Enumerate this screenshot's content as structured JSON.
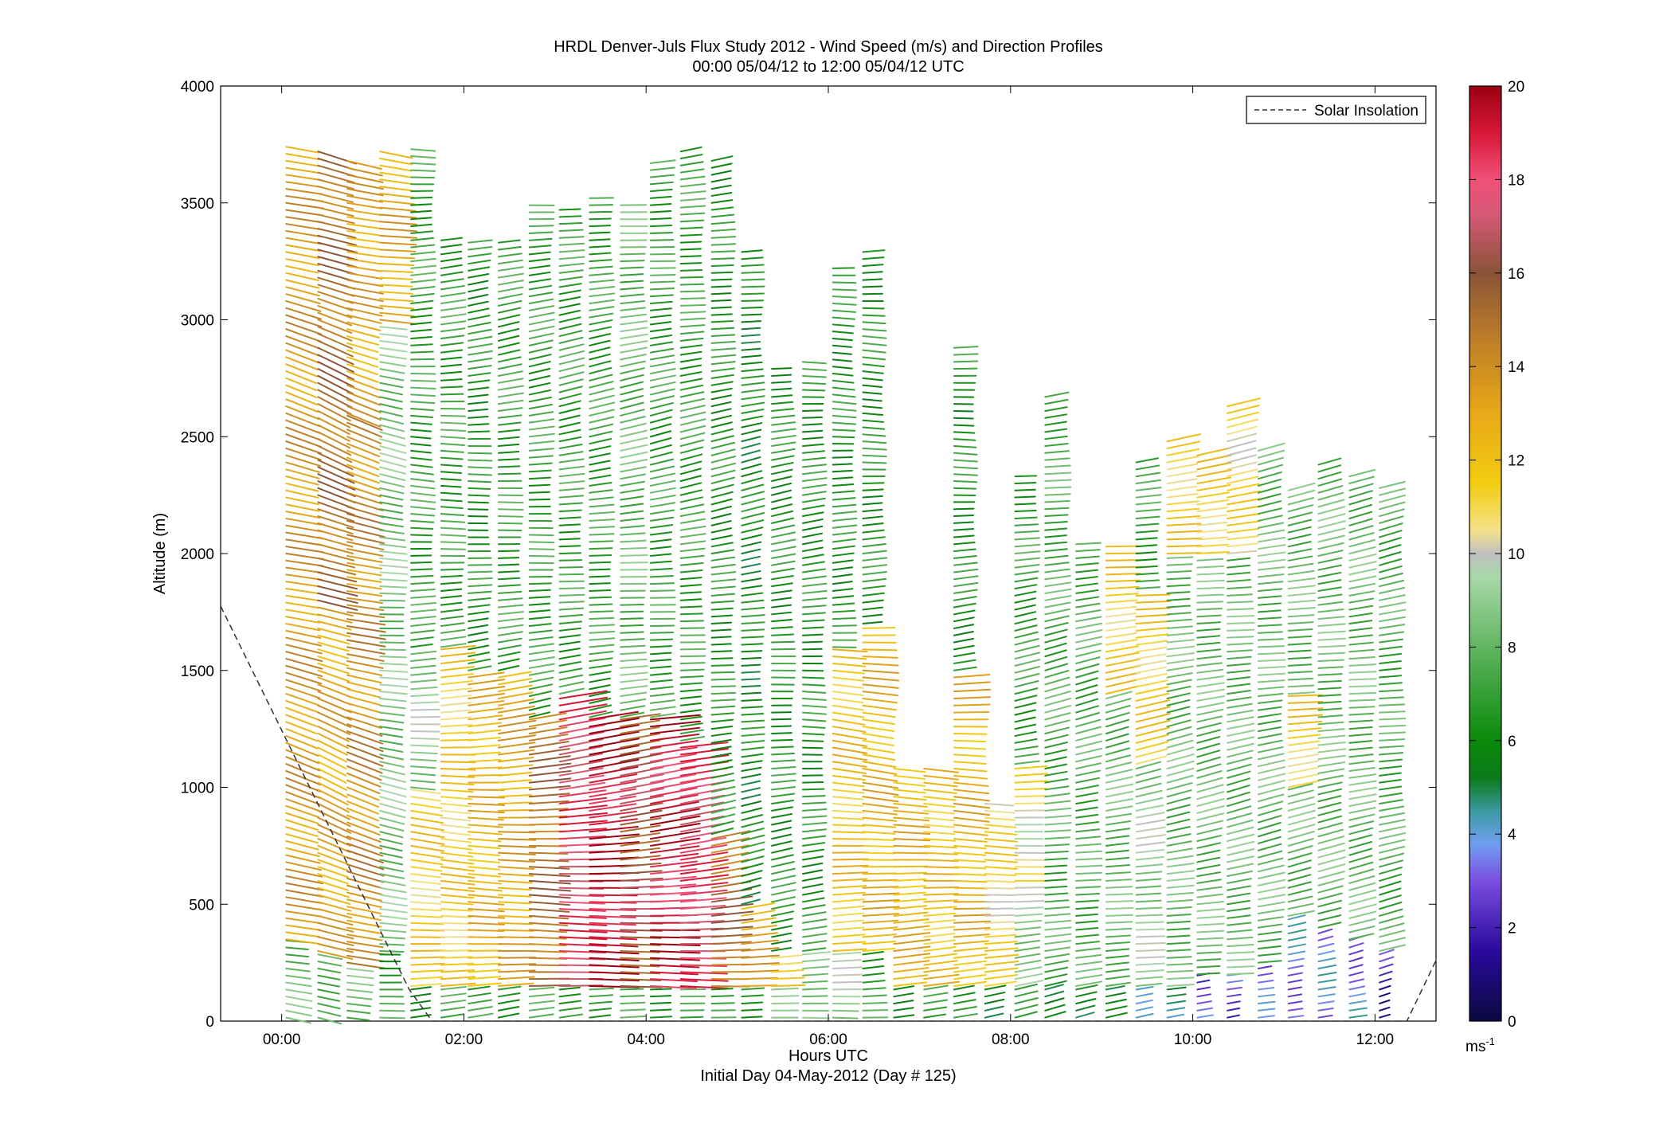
{
  "figure": {
    "title_line1": "HRDL Denver-Juls Flux Study 2012 - Wind Speed (m/s) and Direction Profiles",
    "title_line2": "00:00 05/04/12 to 12:00 05/04/12  UTC",
    "xlabel": "Hours UTC",
    "xlabel_sub": "Initial Day 04-May-2012 (Day # 125)",
    "ylabel": "Altitude (m)",
    "legend_label": "Solar Insolation",
    "colorbar_unit": "ms",
    "colorbar_unit_exp": "-1"
  },
  "chart_data": {
    "type": "scatter",
    "xlim": [
      -0.67,
      12.67
    ],
    "ylim": [
      0,
      4000
    ],
    "x_ticks": [
      0,
      2,
      4,
      6,
      8,
      10,
      12
    ],
    "x_tick_labels": [
      "00:00",
      "02:00",
      "04:00",
      "06:00",
      "08:00",
      "10:00",
      "12:00"
    ],
    "y_ticks": [
      0,
      500,
      1000,
      1500,
      2000,
      2500,
      3000,
      3500,
      4000
    ],
    "y_tick_labels": [
      "0",
      "500",
      "1000",
      "1500",
      "2000",
      "2500",
      "3000",
      "3500",
      "4000"
    ],
    "colorbar": {
      "range": [
        0,
        20
      ],
      "ticks": [
        0,
        2,
        4,
        6,
        8,
        10,
        12,
        14,
        16,
        18,
        20
      ],
      "tick_labels": [
        "0",
        "2",
        "4",
        "6",
        "8",
        "10",
        "12",
        "14",
        "16",
        "18",
        "20"
      ],
      "stops": [
        {
          "v": 0,
          "c": "#0a0a40"
        },
        {
          "v": 1.5,
          "c": "#2a0a9c"
        },
        {
          "v": 3,
          "c": "#7a4ee0"
        },
        {
          "v": 3.8,
          "c": "#6f9ff0"
        },
        {
          "v": 4.5,
          "c": "#3a9aa0"
        },
        {
          "v": 5.2,
          "c": "#0c7a1a"
        },
        {
          "v": 6,
          "c": "#0a8a0a"
        },
        {
          "v": 7.5,
          "c": "#4aaa4a"
        },
        {
          "v": 9.5,
          "c": "#a8d8a8"
        },
        {
          "v": 10,
          "c": "#c0c0c0"
        },
        {
          "v": 10.5,
          "c": "#f4e28a"
        },
        {
          "v": 11.5,
          "c": "#f2cc10"
        },
        {
          "v": 13,
          "c": "#e8a818"
        },
        {
          "v": 14.5,
          "c": "#c08028"
        },
        {
          "v": 16,
          "c": "#8a5438"
        },
        {
          "v": 17.3,
          "c": "#d85878"
        },
        {
          "v": 18,
          "c": "#f05078"
        },
        {
          "v": 19,
          "c": "#d81838"
        },
        {
          "v": 20,
          "c": "#9a0010"
        }
      ]
    },
    "series": [
      {
        "kind": "solar_insolation",
        "legend": "Solar Insolation",
        "style": "dashed",
        "color": "#333333",
        "points": [
          [
            -0.67,
            1775
          ],
          [
            1.4,
            135
          ],
          [
            1.65,
            0
          ],
          [
            12.35,
            0
          ],
          [
            12.67,
            260
          ]
        ]
      }
    ],
    "profiles": [
      {
        "t": 0.05,
        "top": 3750,
        "segments": [
          [
            0,
            350,
            8
          ],
          [
            350,
            3750,
            13.5
          ]
        ],
        "dir": 250
      },
      {
        "t": 0.4,
        "top": 3750,
        "segments": [
          [
            0,
            300,
            8
          ],
          [
            300,
            1800,
            13
          ],
          [
            1800,
            3750,
            15
          ]
        ],
        "dir": 245
      },
      {
        "t": 0.72,
        "top": 3700,
        "segments": [
          [
            0,
            250,
            8
          ],
          [
            250,
            2600,
            14
          ],
          [
            2600,
            3700,
            13
          ]
        ],
        "dir": 250
      },
      {
        "t": 1.08,
        "top": 3750,
        "segments": [
          [
            0,
            300,
            7
          ],
          [
            300,
            3000,
            8.5
          ],
          [
            3000,
            3750,
            13
          ]
        ],
        "dir": 255
      },
      {
        "t": 1.42,
        "top": 3750,
        "segments": [
          [
            0,
            150,
            6.5
          ],
          [
            150,
            1000,
            11.5
          ],
          [
            1000,
            1600,
            9
          ],
          [
            1600,
            3750,
            7
          ]
        ],
        "dir": 262
      },
      {
        "t": 1.75,
        "top": 3350,
        "segments": [
          [
            0,
            150,
            7
          ],
          [
            150,
            1600,
            11.5
          ],
          [
            1600,
            3350,
            7
          ]
        ],
        "dir": 264
      },
      {
        "t": 2.05,
        "top": 3350,
        "segments": [
          [
            0,
            150,
            7
          ],
          [
            150,
            1500,
            12.5
          ],
          [
            1500,
            3350,
            6.5
          ]
        ],
        "dir": 266
      },
      {
        "t": 2.38,
        "top": 3350,
        "segments": [
          [
            0,
            150,
            7
          ],
          [
            150,
            1500,
            13
          ],
          [
            1500,
            3350,
            7
          ]
        ],
        "dir": 268
      },
      {
        "t": 2.72,
        "top": 3500,
        "segments": [
          [
            0,
            150,
            7
          ],
          [
            150,
            1300,
            15
          ],
          [
            1300,
            3500,
            7
          ]
        ],
        "dir": 268
      },
      {
        "t": 3.05,
        "top": 3500,
        "segments": [
          [
            0,
            150,
            7
          ],
          [
            150,
            1400,
            18
          ],
          [
            1400,
            3500,
            7
          ]
        ],
        "dir": 270
      },
      {
        "t": 3.38,
        "top": 3550,
        "segments": [
          [
            0,
            150,
            7
          ],
          [
            150,
            1300,
            19.5
          ],
          [
            1300,
            3550,
            7
          ]
        ],
        "dir": 270
      },
      {
        "t": 3.72,
        "top": 3500,
        "segments": [
          [
            0,
            150,
            7
          ],
          [
            150,
            1300,
            16
          ],
          [
            1300,
            3500,
            8
          ]
        ],
        "dir": 270
      },
      {
        "t": 4.05,
        "top": 3700,
        "segments": [
          [
            0,
            150,
            7
          ],
          [
            150,
            1300,
            19
          ],
          [
            1300,
            3700,
            7
          ]
        ],
        "dir": 270
      },
      {
        "t": 4.38,
        "top": 3750,
        "segments": [
          [
            0,
            150,
            7
          ],
          [
            150,
            1200,
            18
          ],
          [
            1200,
            3750,
            7
          ]
        ],
        "dir": 270
      },
      {
        "t": 4.72,
        "top": 3700,
        "segments": [
          [
            0,
            150,
            7
          ],
          [
            150,
            800,
            15
          ],
          [
            800,
            3700,
            6.5
          ]
        ],
        "dir": 270
      },
      {
        "t": 5.05,
        "top": 3300,
        "segments": [
          [
            0,
            150,
            7
          ],
          [
            150,
            500,
            13
          ],
          [
            500,
            3300,
            6
          ]
        ],
        "dir": 270
      },
      {
        "t": 5.38,
        "top": 2800,
        "segments": [
          [
            0,
            150,
            8
          ],
          [
            150,
            300,
            11.5
          ],
          [
            300,
            2800,
            6.5
          ]
        ],
        "dir": 268
      },
      {
        "t": 5.72,
        "top": 2850,
        "segments": [
          [
            0,
            300,
            9
          ],
          [
            300,
            2850,
            6.5
          ]
        ],
        "dir": 265
      },
      {
        "t": 6.05,
        "top": 3250,
        "segments": [
          [
            0,
            300,
            9
          ],
          [
            300,
            1600,
            12
          ],
          [
            1600,
            3250,
            6.5
          ]
        ],
        "dir": 262
      },
      {
        "t": 6.38,
        "top": 3300,
        "segments": [
          [
            0,
            300,
            7
          ],
          [
            300,
            1700,
            12.5
          ],
          [
            1700,
            3300,
            6.5
          ]
        ],
        "dir": 262
      },
      {
        "t": 6.72,
        "top": 1100,
        "segments": [
          [
            0,
            150,
            6.5
          ],
          [
            150,
            1100,
            12.5
          ]
        ],
        "dir": 265
      },
      {
        "t": 7.05,
        "top": 1100,
        "segments": [
          [
            0,
            150,
            6.5
          ],
          [
            150,
            1100,
            12
          ]
        ],
        "dir": 265
      },
      {
        "t": 7.38,
        "top": 2900,
        "segments": [
          [
            0,
            150,
            6.5
          ],
          [
            150,
            1500,
            12.5
          ],
          [
            1500,
            2900,
            6.5
          ]
        ],
        "dir": 265
      },
      {
        "t": 7.72,
        "top": 950,
        "segments": [
          [
            0,
            150,
            6
          ],
          [
            150,
            950,
            11
          ]
        ],
        "dir": 266
      },
      {
        "t": 8.05,
        "top": 2350,
        "segments": [
          [
            0,
            150,
            6
          ],
          [
            150,
            600,
            9
          ],
          [
            600,
            1100,
            10.5
          ],
          [
            1100,
            2350,
            7
          ]
        ],
        "dir": 270
      },
      {
        "t": 8.38,
        "top": 2700,
        "segments": [
          [
            0,
            150,
            6
          ],
          [
            150,
            2700,
            7.5
          ]
        ],
        "dir": 272
      },
      {
        "t": 8.72,
        "top": 2050,
        "segments": [
          [
            0,
            150,
            5.5
          ],
          [
            150,
            2050,
            7.5
          ]
        ],
        "dir": 272
      },
      {
        "t": 9.05,
        "top": 2050,
        "segments": [
          [
            0,
            150,
            5
          ],
          [
            150,
            1400,
            8
          ],
          [
            1400,
            2050,
            11.5
          ]
        ],
        "dir": 272
      },
      {
        "t": 9.38,
        "top": 2400,
        "segments": [
          [
            0,
            150,
            5
          ],
          [
            150,
            1100,
            9
          ],
          [
            1100,
            1850,
            11.5
          ],
          [
            1850,
            2400,
            7
          ]
        ],
        "dir": 272
      },
      {
        "t": 9.72,
        "top": 2500,
        "segments": [
          [
            0,
            150,
            4
          ],
          [
            150,
            2000,
            8
          ],
          [
            2000,
            2500,
            11.5
          ]
        ],
        "dir": 272
      },
      {
        "t": 10.05,
        "top": 2450,
        "segments": [
          [
            0,
            200,
            3
          ],
          [
            200,
            2000,
            8
          ],
          [
            2000,
            2450,
            11.5
          ]
        ],
        "dir": 272
      },
      {
        "t": 10.38,
        "top": 2650,
        "segments": [
          [
            0,
            200,
            3
          ],
          [
            200,
            2000,
            8
          ],
          [
            2000,
            2650,
            11
          ]
        ],
        "dir": 272
      },
      {
        "t": 10.72,
        "top": 2450,
        "segments": [
          [
            0,
            250,
            3
          ],
          [
            250,
            2450,
            8
          ]
        ],
        "dir": 272
      },
      {
        "t": 11.05,
        "top": 2300,
        "segments": [
          [
            0,
            450,
            3.5
          ],
          [
            450,
            1000,
            8
          ],
          [
            1000,
            1400,
            11.5
          ],
          [
            1400,
            2300,
            8
          ]
        ],
        "dir": 272
      },
      {
        "t": 11.38,
        "top": 2400,
        "segments": [
          [
            0,
            400,
            3.5
          ],
          [
            400,
            2400,
            8
          ]
        ],
        "dir": 272
      },
      {
        "t": 11.72,
        "top": 2350,
        "segments": [
          [
            0,
            350,
            3.5
          ],
          [
            350,
            2350,
            8
          ]
        ],
        "dir": 272
      },
      {
        "t": 12.05,
        "top": 2300,
        "segments": [
          [
            0,
            300,
            2
          ],
          [
            300,
            2300,
            7.5
          ]
        ],
        "dir": 272
      }
    ],
    "grid": false,
    "legend_position": "top-right"
  }
}
